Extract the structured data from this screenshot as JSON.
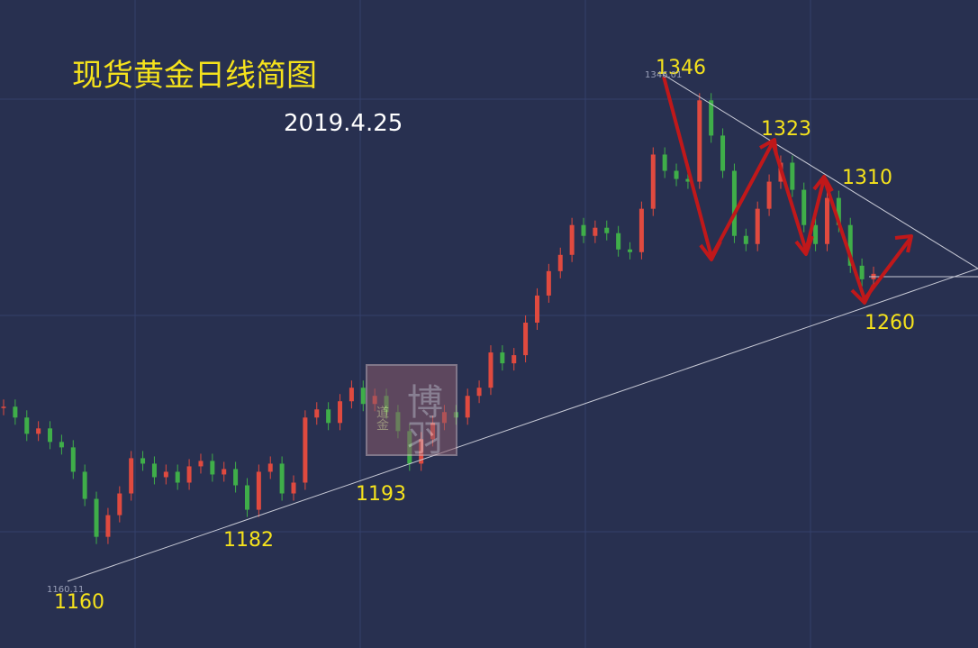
{
  "chart_data": {
    "type": "candlestick",
    "title": "现货黄金日线简图",
    "subtitle": "2019.4.25",
    "values": [
      1224,
      1220,
      1214,
      1216,
      1211,
      1209,
      1200,
      1190,
      1176,
      1184,
      1192,
      1205,
      1203,
      1198,
      1200,
      1196,
      1202,
      1204,
      1199,
      1201,
      1195,
      1186,
      1200,
      1203,
      1192,
      1196,
      1220,
      1223,
      1218,
      1226,
      1231,
      1225,
      1228,
      1222,
      1215,
      1203,
      1212,
      1218,
      1222,
      1220,
      1228,
      1231,
      1244,
      1240,
      1243,
      1255,
      1265,
      1274,
      1280,
      1291,
      1287,
      1290,
      1288,
      1282,
      1281,
      1297,
      1317,
      1311,
      1308,
      1307,
      1337,
      1324,
      1311,
      1287,
      1284,
      1297,
      1307,
      1314,
      1304,
      1291,
      1284,
      1301,
      1291,
      1276,
      1271,
      1273
    ],
    "ylim": [
      1135,
      1374
    ],
    "up_color": "#e04a3f",
    "down_color": "#3fae49",
    "annotations": [
      "1346",
      "1323",
      "1310",
      "1260",
      "1160",
      "1182",
      "1193"
    ],
    "small_labels": [
      "1346.01",
      "1160.11"
    ],
    "watermark": {
      "main": "博羽",
      "seal": "道金"
    }
  }
}
